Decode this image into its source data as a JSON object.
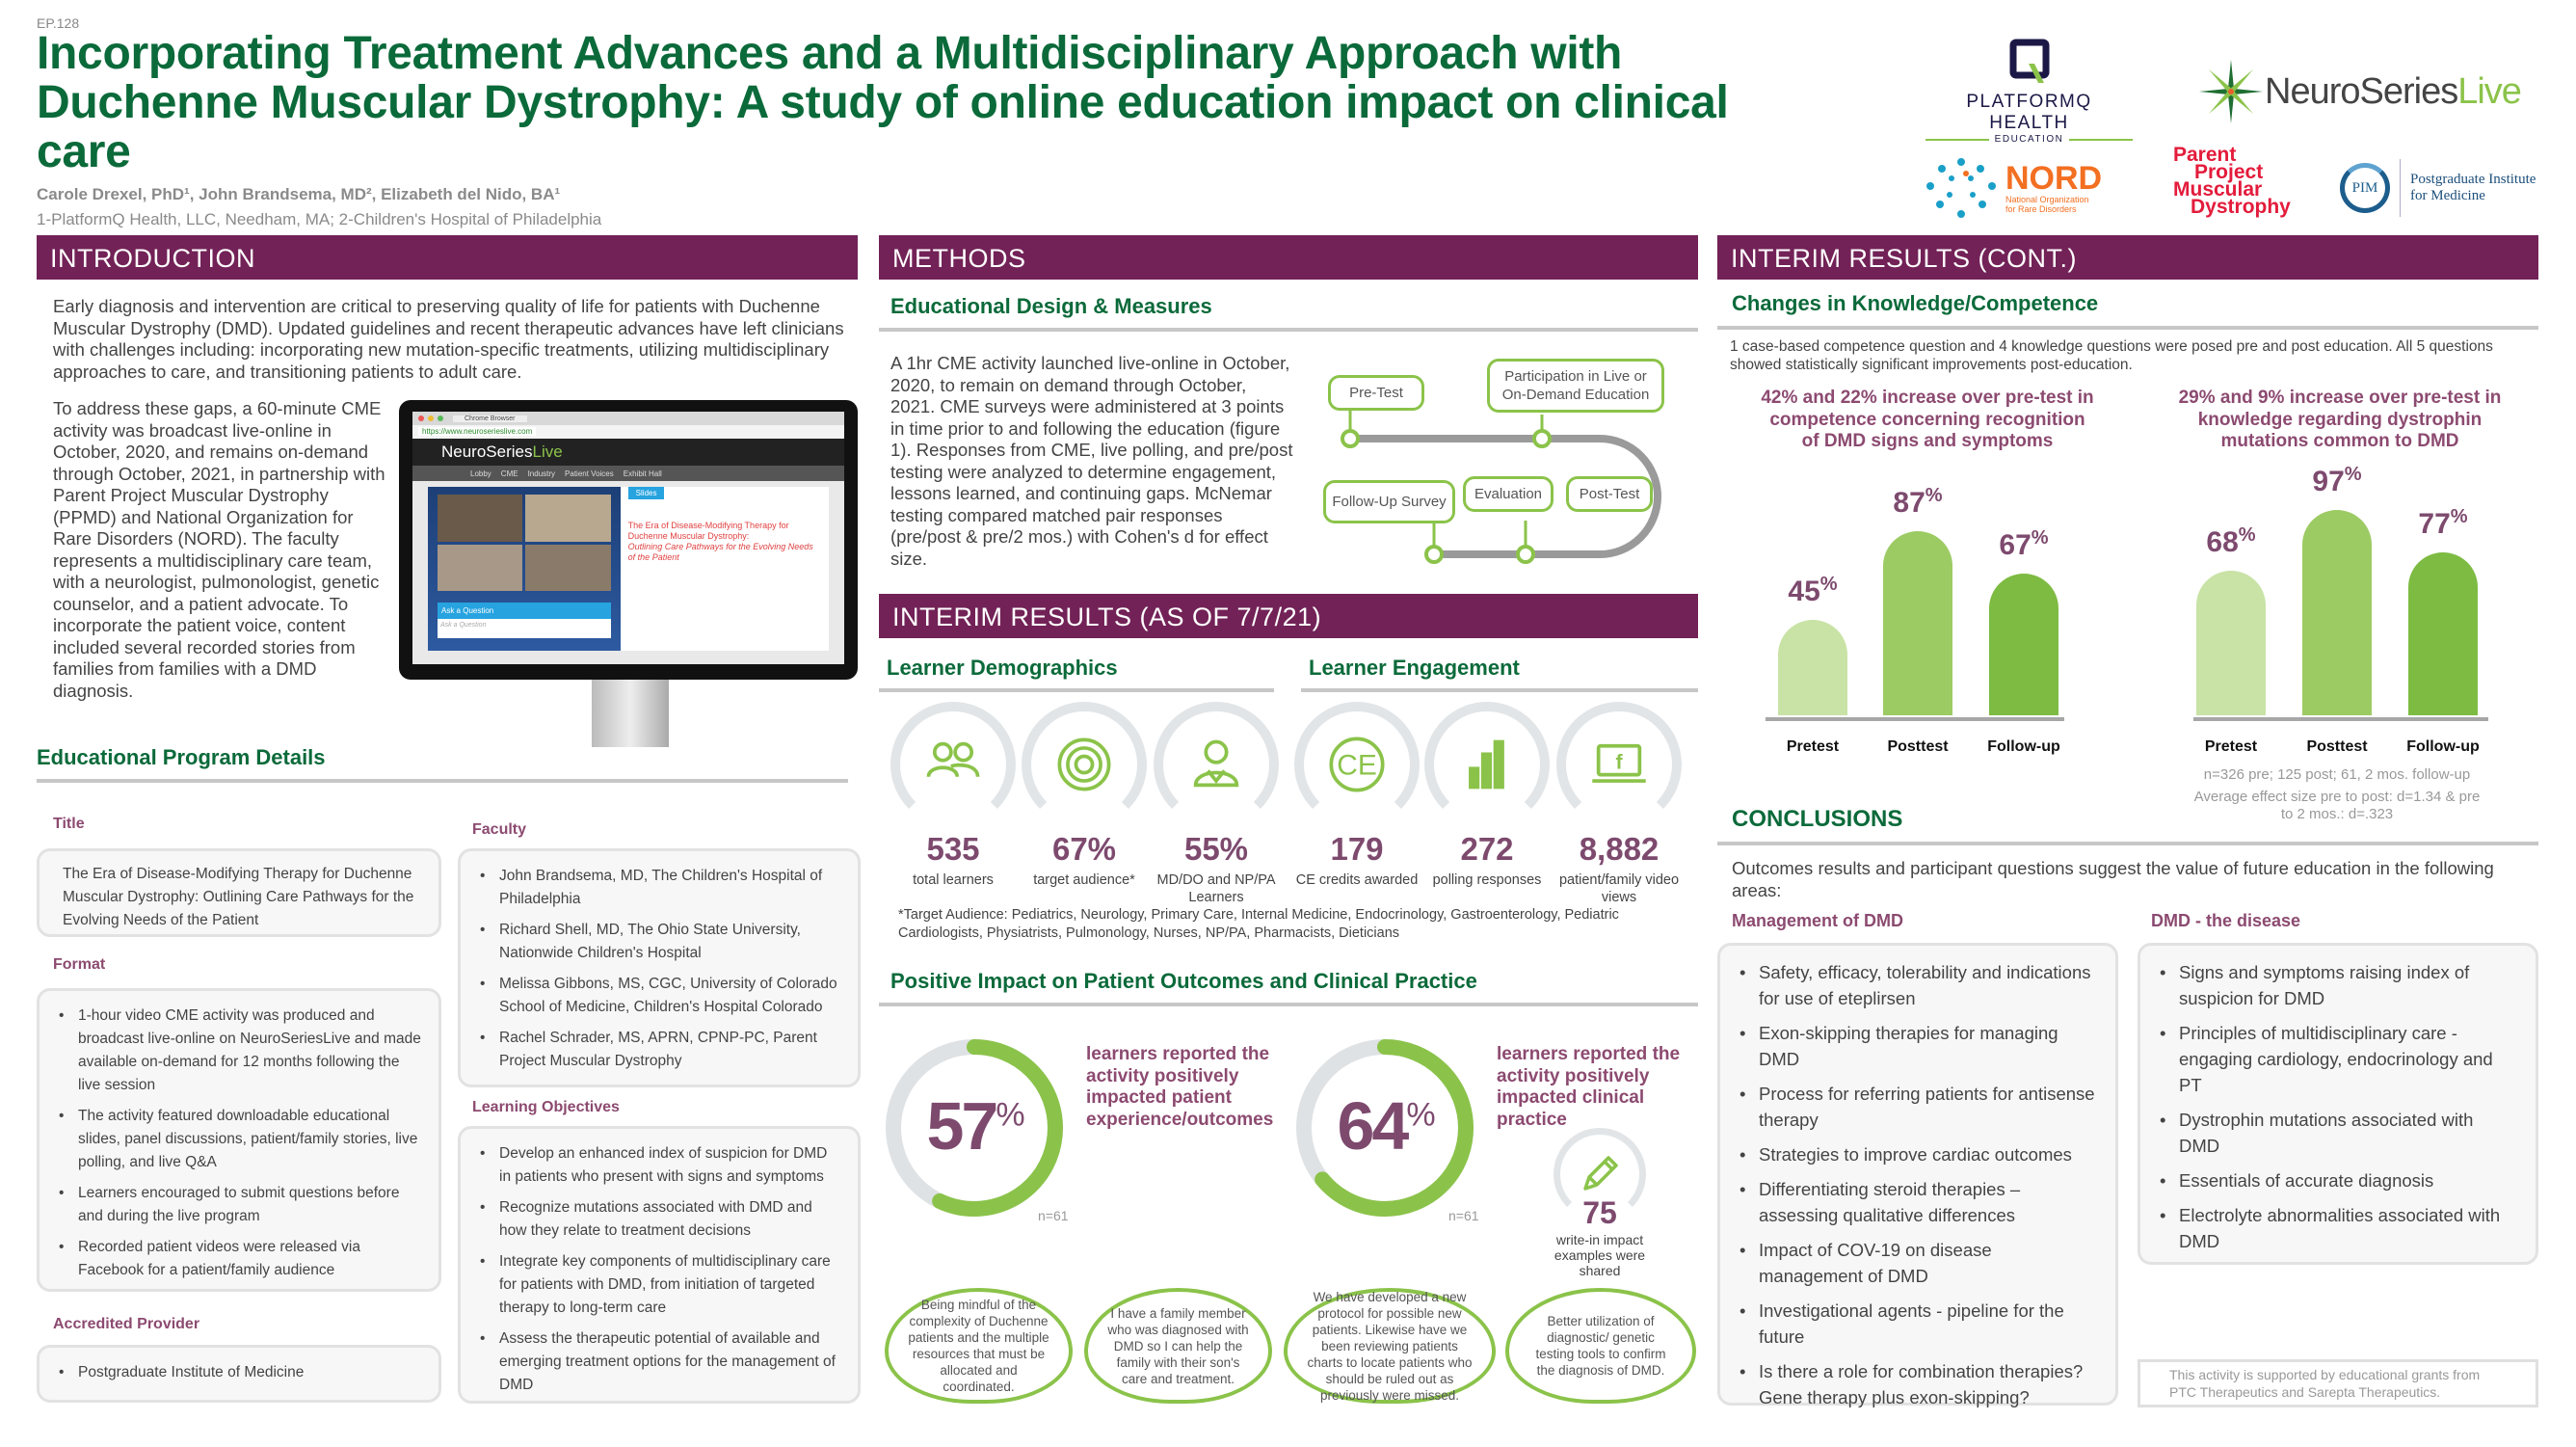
{
  "header": {
    "code": "EP.128",
    "title": "Incorporating Treatment Advances and a Multidisciplinary Approach with Duchenne Muscular Dystrophy: A study of online education impact on clinical care",
    "authors": "Carole Drexel, PhD¹, John Brandsema, MD², Elizabeth del Nido, BA¹",
    "affiliations": "1-PlatformQ Health, LLC, Needham, MA; 2-Children's Hospital of Philadelphia"
  },
  "logos": {
    "platformq": "PLATFORMQ HEALTH",
    "platformq_sub": "EDUCATION",
    "neuro_a": "NeuroSeries",
    "neuro_b": "Live",
    "nord": "NORD",
    "nord_sub": "National Organization for Rare Disorders",
    "ppmd": [
      "Parent",
      "Project",
      "Muscular",
      "Dystrophy"
    ],
    "pim": "PIM",
    "pim_name": "Postgraduate Institute for Medicine"
  },
  "intro": {
    "heading": "INTRODUCTION",
    "p1": "Early diagnosis and intervention are critical to preserving quality of life for patients with Duchenne Muscular Dystrophy (DMD). Updated guidelines and recent therapeutic advances have left clinicians with challenges including:  incorporating new mutation-specific treatments, utilizing multidisciplinary approaches to care, and transitioning patients to adult care.",
    "p2": "To address these gaps, a 60-minute CME activity was broadcast live-online in October, 2020, and remains on-demand through October, 2021, in partnership with Parent Project Muscular Dystrophy (PPMD) and National Organization for Rare Disorders (NORD). The faculty represents a multidisciplinary care team, with a neurologist, pulmonologist, genetic counselor, and a patient advocate. To incorporate the patient voice, content included several recorded stories from families from families with a DMD diagnosis."
  },
  "monitor": {
    "tab": "Chrome Browser",
    "url": "https://www.neuroserieslive.com",
    "nav": [
      "Lobby",
      "CME",
      "Industry",
      "Patient Voices",
      "Exhibit Hall"
    ],
    "slides_tab": "Slides",
    "slide_title": "The Era of Disease-Modifying Therapy for Duchenne Muscular Dystrophy:",
    "slide_subtitle": "Outlining Care Pathways for the Evolving Needs of the Patient",
    "ask": "Ask a Question",
    "ask_placeholder": "Ask a Question"
  },
  "program": {
    "heading": "Educational Program Details",
    "title_label": "Title",
    "title_text": "The Era of Disease-Modifying Therapy for Duchenne Muscular Dystrophy: Outlining Care Pathways for the Evolving Needs of the Patient",
    "format_label": "Format",
    "format_items": [
      "1-hour video CME activity was produced and broadcast live-online on NeuroSeriesLive and made available on-demand for 12 months following the live session",
      "The activity featured downloadable educational slides, panel discussions, patient/family stories, live polling, and live Q&A",
      "Learners encouraged to submit questions before and during the live program",
      "Recorded patient videos were released via Facebook for a patient/family audience"
    ],
    "provider_label": "Accredited Provider",
    "provider": "Postgraduate Institute of Medicine",
    "faculty_label": "Faculty",
    "faculty": [
      "John Brandsema, MD, The Children's Hospital of Philadelphia",
      "Richard Shell, MD, The Ohio State University, Nationwide Children's Hospital",
      "Melissa Gibbons, MS, CGC, University of Colorado School of Medicine, Children's Hospital Colorado",
      "Rachel Schrader, MS, APRN, CPNP-PC, Parent Project Muscular Dystrophy"
    ],
    "objectives_label": "Learning Objectives",
    "objectives": [
      "Develop an enhanced index of suspicion for DMD in patients who present with signs and symptoms",
      "Recognize mutations associated with DMD and how they relate to treatment decisions",
      "Integrate key components of multidisciplinary care for patients with DMD, from initiation of targeted therapy to long-term care",
      "Assess the therapeutic potential of available and emerging treatment options for the management of DMD"
    ]
  },
  "methods": {
    "heading": "METHODS",
    "subheading": "Educational Design & Measures",
    "text": "A 1hr CME activity launched live-online in October, 2020, to remain on demand through October, 2021. CME surveys were administered at 3 points in time prior to and following the education (figure 1). Responses from CME, live polling, and pre/post testing were analyzed to determine engagement, lessons learned, and continuing gaps. McNemar testing compared matched pair responses (pre/post & pre/2 mos.) with Cohen's d for effect size.",
    "flow": {
      "pretest": "Pre-Test",
      "participation": "Participation in Live or On-Demand Education",
      "followup": "Follow-Up Survey",
      "evaluation": "Evaluation",
      "posttest": "Post-Test"
    }
  },
  "results": {
    "heading": "INTERIM RESULTS (AS OF 7/7/21)",
    "demographics": "Learner Demographics",
    "engagement": "Learner Engagement",
    "stats": [
      {
        "icon": "learners-icon",
        "value": "535",
        "label": "total learners"
      },
      {
        "icon": "target-icon",
        "value": "67%",
        "label": "target audience*"
      },
      {
        "icon": "doctor-icon",
        "value": "55%",
        "label": "MD/DO and NP/PA Learners"
      },
      {
        "icon": "ce-icon",
        "value": "179",
        "label": "CE credits awarded"
      },
      {
        "icon": "bar-chart-icon",
        "value": "272",
        "label": "polling responses"
      },
      {
        "icon": "laptop-facebook-icon",
        "value": "8,882",
        "label": "patient/family video views"
      }
    ],
    "footnote": "*Target Audience: Pediatrics, Neurology, Primary Care, Internal Medicine, Endocrinology, Gastroenterology, Pediatric Cardiologists, Physiatrists, Pulmonology, Nurses, NP/PA, Pharmacists, Dieticians",
    "impact_heading": "Positive Impact on Patient Outcomes and Clinical Practice",
    "impact": [
      {
        "value": 57,
        "text": "learners reported the activity positively impacted patient experience/outcomes",
        "n": "n=61"
      },
      {
        "value": 64,
        "text": "learners reported the activity positively impacted clinical practice",
        "n": "n=61"
      }
    ],
    "writein_value": "75",
    "writein_label": "write-in impact examples were shared",
    "quotes": [
      "Being mindful of the complexity of Duchenne patients and the multiple resources that must be allocated and coordinated.",
      "I have a family member who was diagnosed with DMD so I can help the family with their son's care and treatment.",
      "We have developed a new protocol for possible new patients. Likewise have we been reviewing patients charts to locate patients who should be ruled out as previously were missed.",
      "Better utilization of diagnostic/ genetic testing tools to confirm the diagnosis of DMD."
    ]
  },
  "cont": {
    "heading": "INTERIM RESULTS (CONT.)",
    "subheading": "Changes in Knowledge/Competence",
    "text": "1 case-based competence question and 4 knowledge questions were posed pre and post education. All 5 questions showed statistically significant improvements post-education.",
    "n_note": "n=326 pre; 125 post; 61, 2 mos. follow-up",
    "effect_note": "Average effect size pre to post: d=1.34 & pre to 2 mos.: d=.323"
  },
  "chart_data": [
    {
      "type": "bar",
      "title": "42% and 22% increase over pre-test in competence concerning recognition of DMD signs and symptoms",
      "categories": [
        "Pretest",
        "Posttest",
        "Follow-up"
      ],
      "values": [
        45,
        87,
        67
      ],
      "unit": "%",
      "ylim": [
        0,
        100
      ]
    },
    {
      "type": "bar",
      "title": "29% and 9% increase over pre-test in knowledge regarding dystrophin mutations common to DMD",
      "categories": [
        "Pretest",
        "Posttest",
        "Follow-up"
      ],
      "values": [
        68,
        97,
        77
      ],
      "unit": "%",
      "ylim": [
        0,
        100
      ]
    }
  ],
  "conclusions": {
    "heading": "CONCLUSIONS",
    "intro": "Outcomes results and participant questions suggest the value of future education in the following areas:",
    "mgmt_label": "Management of DMD",
    "mgmt": [
      "Safety, efficacy, tolerability and indications for use of eteplirsen",
      "Exon-skipping therapies for managing DMD",
      "Process for referring patients for antisense therapy",
      "Strategies to improve cardiac outcomes",
      "Differentiating steroid therapies – assessing qualitative differences",
      "Impact of COV-19 on disease management of DMD",
      "Investigational agents - pipeline for the future",
      "Is there a role for combination therapies? Gene therapy plus exon-skipping?"
    ],
    "disease_label": "DMD - the disease",
    "disease": [
      "Signs and symptoms raising index of suspicion for DMD",
      "Principles of multidisciplinary care - engaging cardiology, endocrinology and PT",
      "Dystrophin mutations associated with DMD",
      "Essentials of accurate diagnosis",
      "Electrolyte abnormalities associated with DMD"
    ],
    "grant": "This activity is supported by educational grants from PTC Therapeutics and Sarepta Therapeutics."
  },
  "colors": {
    "purple": "#722257",
    "green": "#0b6a3a",
    "lime": "#8bc34a",
    "mauve": "#7d4a6e"
  }
}
